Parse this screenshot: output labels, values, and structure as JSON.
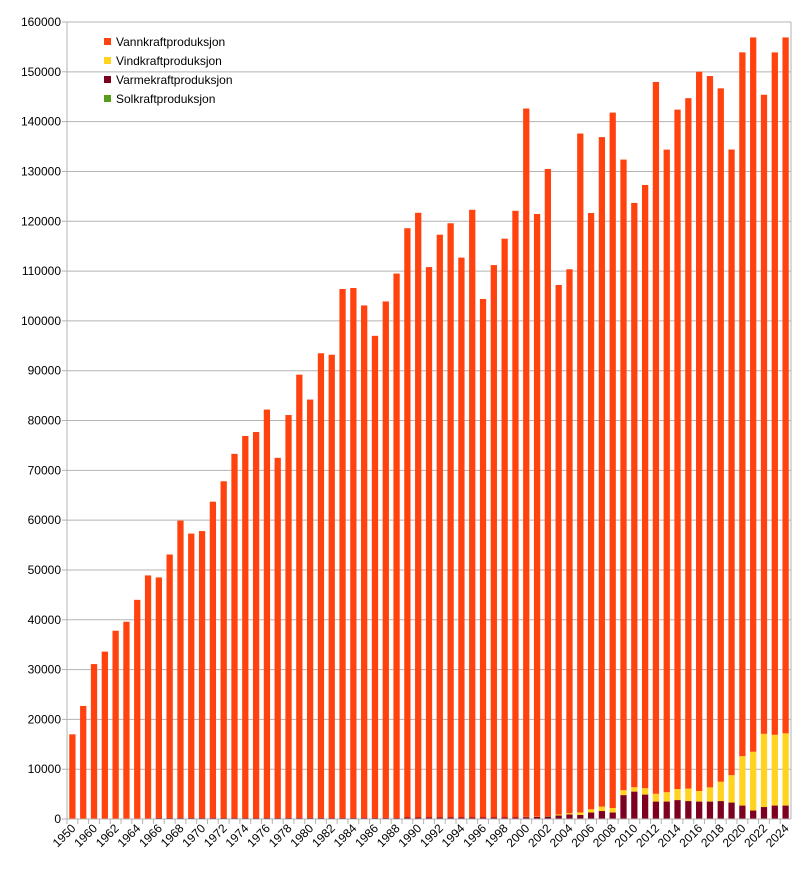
{
  "colors": {
    "hydro": "#ff420e",
    "wind": "#ffd320",
    "thermal": "#7e0021",
    "solar": "#579d1c",
    "grid": "#b3b3b3",
    "axis": "#b3b3b3"
  },
  "chart_data": {
    "type": "bar",
    "stacked": true,
    "title": "",
    "xlabel": "",
    "ylabel": "",
    "ylim": [
      0,
      160000
    ],
    "y_ticks": [
      0,
      10000,
      20000,
      30000,
      40000,
      50000,
      60000,
      70000,
      80000,
      90000,
      100000,
      110000,
      120000,
      130000,
      140000,
      150000,
      160000
    ],
    "x_tick_labels": [
      "1950",
      "1960",
      "1962",
      "1964",
      "1966",
      "1968",
      "1970",
      "1972",
      "1974",
      "1976",
      "1978",
      "1980",
      "1982",
      "1984",
      "1986",
      "1988",
      "1990",
      "1992",
      "1994",
      "1996",
      "1998",
      "2000",
      "2002",
      "2004",
      "2006",
      "2008",
      "2010",
      "2012",
      "2014",
      "2016",
      "2018",
      "2020",
      "2022",
      "2024"
    ],
    "categories": [
      "1950",
      "1955",
      "1960",
      "1961",
      "1962",
      "1963",
      "1964",
      "1965",
      "1966",
      "1967",
      "1968",
      "1969",
      "1970",
      "1971",
      "1972",
      "1973",
      "1974",
      "1975",
      "1976",
      "1977",
      "1978",
      "1979",
      "1980",
      "1981",
      "1982",
      "1983",
      "1984",
      "1985",
      "1986",
      "1987",
      "1988",
      "1989",
      "1990",
      "1991",
      "1992",
      "1993",
      "1994",
      "1995",
      "1996",
      "1997",
      "1998",
      "1999",
      "2000",
      "2001",
      "2002",
      "2003",
      "2004",
      "2005",
      "2006",
      "2007",
      "2008",
      "2009",
      "2010",
      "2011",
      "2012",
      "2013",
      "2014",
      "2015",
      "2016",
      "2017",
      "2018",
      "2019",
      "2020",
      "2021",
      "2022",
      "2023",
      "2024"
    ],
    "legend_position": "top-left",
    "grid": true,
    "series": [
      {
        "name": "Vannkraftproduksjon",
        "color_key": "hydro",
        "values": [
          17000,
          22700,
          31100,
          33600,
          37800,
          39600,
          44000,
          48900,
          48300,
          52900,
          59700,
          57100,
          57600,
          63500,
          67600,
          73100,
          76700,
          77500,
          82000,
          72300,
          80900,
          89000,
          84000,
          93300,
          93000,
          106200,
          106400,
          102900,
          96800,
          103700,
          109300,
          118300,
          121400,
          110500,
          117000,
          119300,
          112400,
          122000,
          104100,
          110900,
          116200,
          121800,
          142200,
          121000,
          129900,
          106300,
          109200,
          136300,
          119700,
          134400,
          139600,
          126600,
          117300,
          121100,
          142900,
          129000,
          136400,
          138600,
          144400,
          142800,
          139200,
          125600,
          141300,
          143400,
          128300,
          137000,
          139700
        ]
      },
      {
        "name": "Vindkraftproduksjon",
        "color_key": "wind",
        "values": [
          0,
          0,
          0,
          0,
          0,
          0,
          0,
          0,
          0,
          0,
          0,
          0,
          0,
          0,
          0,
          0,
          0,
          0,
          0,
          0,
          0,
          0,
          0,
          0,
          0,
          0,
          0,
          0,
          0,
          0,
          0,
          0,
          0,
          0,
          0,
          0,
          0,
          0,
          0,
          0,
          0,
          0,
          30,
          60,
          100,
          210,
          260,
          510,
          650,
          890,
          910,
          980,
          880,
          1280,
          1560,
          1880,
          2210,
          2510,
          2120,
          2850,
          3880,
          5500,
          9910,
          11800,
          14700,
          14200,
          14500
        ]
      },
      {
        "name": "Varmekraftproduksjon",
        "color_key": "thermal",
        "values": [
          0,
          0,
          0,
          0,
          0,
          0,
          0,
          0,
          200,
          200,
          200,
          200,
          200,
          200,
          200,
          200,
          200,
          200,
          200,
          200,
          200,
          200,
          200,
          200,
          200,
          200,
          200,
          200,
          200,
          200,
          200,
          300,
          300,
          300,
          300,
          300,
          300,
          300,
          300,
          300,
          300,
          300,
          400,
          400,
          500,
          700,
          900,
          800,
          1300,
          1600,
          1300,
          4800,
          5500,
          4900,
          3500,
          3500,
          3800,
          3600,
          3500,
          3500,
          3600,
          3300,
          2700,
          1700,
          2400,
          2700,
          2700
        ]
      },
      {
        "name": "Solkraftproduksjon",
        "color_key": "solar",
        "values": [
          0,
          0,
          0,
          0,
          0,
          0,
          0,
          0,
          0,
          0,
          0,
          0,
          0,
          0,
          0,
          0,
          0,
          0,
          0,
          0,
          0,
          0,
          0,
          0,
          0,
          0,
          0,
          0,
          0,
          0,
          0,
          0,
          0,
          0,
          0,
          0,
          0,
          0,
          0,
          0,
          0,
          0,
          0,
          0,
          0,
          0,
          0,
          0,
          0,
          0,
          0,
          0,
          0,
          0,
          0,
          0,
          0,
          0,
          0,
          0,
          0,
          0,
          0,
          0,
          0,
          0,
          0
        ]
      }
    ]
  }
}
